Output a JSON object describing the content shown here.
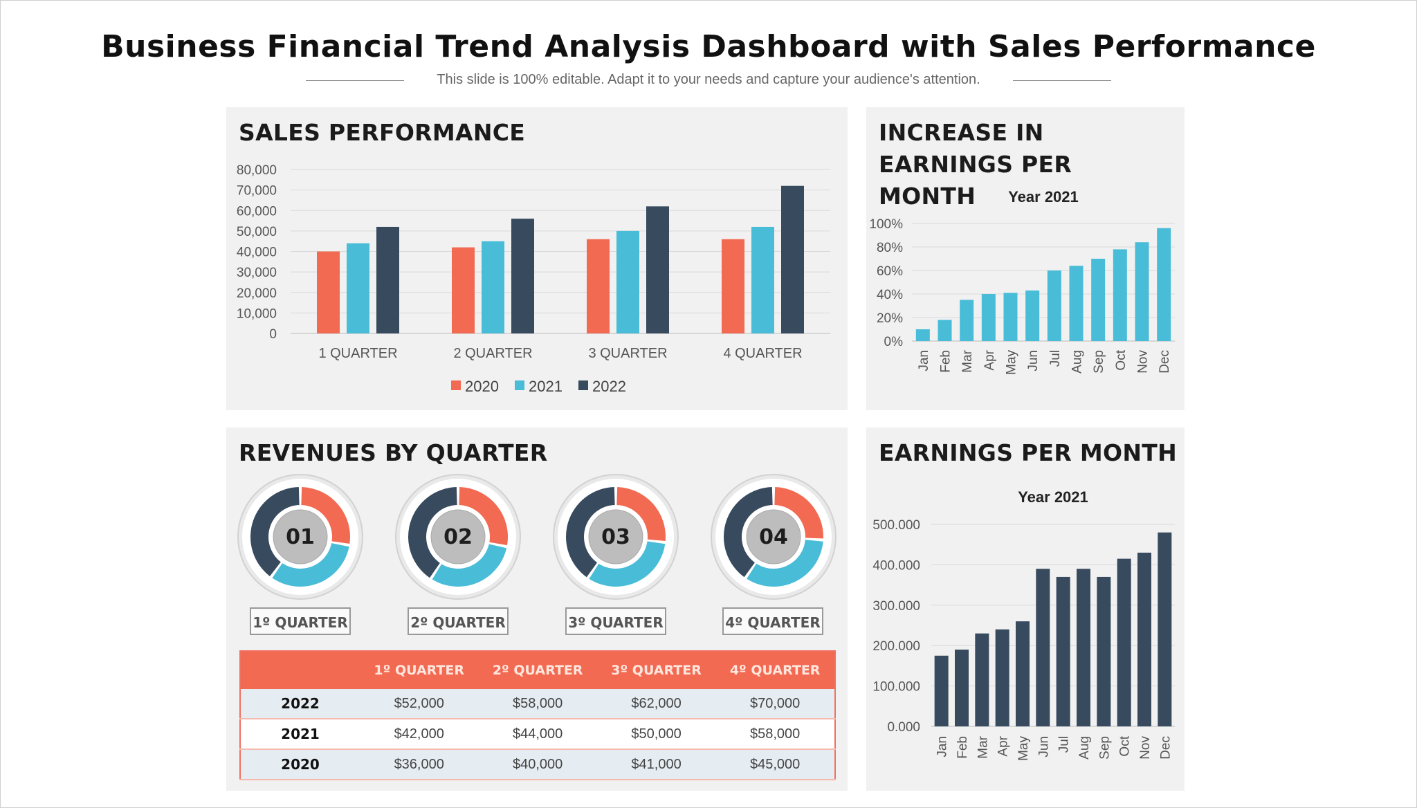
{
  "page": {
    "title": "Business Financial Trend Analysis Dashboard with Sales Performance",
    "subtitle": "This slide is 100% editable. Adapt it to your needs and capture your audience's attention."
  },
  "colors": {
    "c2020": "#f26a51",
    "c2021": "#49bcd8",
    "c2022": "#374a5e",
    "panel_bg": "#f1f1f1"
  },
  "chart_data": [
    {
      "id": "sales",
      "type": "bar",
      "title": "SALES PERFORMANCE",
      "categories": [
        "1 QUARTER",
        "2 QUARTER",
        "3 QUARTER",
        "4 QUARTER"
      ],
      "series": [
        {
          "name": "2020",
          "color": "#f26a51",
          "values": [
            40000,
            42000,
            46000,
            46000
          ]
        },
        {
          "name": "2021",
          "color": "#49bcd8",
          "values": [
            44000,
            45000,
            50000,
            52000
          ]
        },
        {
          "name": "2022",
          "color": "#374a5e",
          "values": [
            52000,
            56000,
            62000,
            72000
          ]
        }
      ],
      "ylim": [
        0,
        80000
      ],
      "yticks": [
        "0",
        "10,000",
        "20,000",
        "30,000",
        "40,000",
        "50,000",
        "60,000",
        "70,000",
        "80,000"
      ],
      "grid": true,
      "legend": "bottom"
    },
    {
      "id": "increase",
      "type": "bar",
      "title": "INCREASE IN EARNINGS PER MONTH",
      "subtitle": "Year 2021",
      "categories": [
        "Jan",
        "Feb",
        "Mar",
        "Apr",
        "May",
        "Jun",
        "Jul",
        "Aug",
        "Sep",
        "Oct",
        "Nov",
        "Dec"
      ],
      "values": [
        10,
        18,
        35,
        40,
        41,
        43,
        60,
        64,
        70,
        78,
        84,
        96
      ],
      "ylim": [
        0,
        100
      ],
      "yticks": [
        "0%",
        "20%",
        "40%",
        "60%",
        "80%",
        "100%"
      ],
      "grid": true,
      "color": "#49bcd8"
    },
    {
      "id": "earnings",
      "type": "bar",
      "title": "EARNINGS PER MONTH",
      "subtitle": "Year 2021",
      "categories": [
        "Jan",
        "Feb",
        "Mar",
        "Apr",
        "May",
        "Jun",
        "Jul",
        "Aug",
        "Sep",
        "Oct",
        "Nov",
        "Dec"
      ],
      "values": [
        175,
        190,
        230,
        240,
        260,
        390,
        370,
        390,
        370,
        415,
        430,
        480
      ],
      "ylim": [
        0,
        500
      ],
      "yticks": [
        "0.000",
        "100.000",
        "200.000",
        "300.000",
        "400.000",
        "500.000"
      ],
      "grid": true,
      "color": "#374a5e"
    },
    {
      "id": "revenues",
      "type": "pie",
      "title": "REVENUES BY QUARTER",
      "donuts": [
        {
          "label": "01",
          "quarter": "1º QUARTER",
          "values": [
            36000,
            42000,
            52000
          ]
        },
        {
          "label": "02",
          "quarter": "2º QUARTER",
          "values": [
            40000,
            44000,
            58000
          ]
        },
        {
          "label": "03",
          "quarter": "3º QUARTER",
          "values": [
            41000,
            50000,
            62000
          ]
        },
        {
          "label": "04",
          "quarter": "4º QUARTER",
          "values": [
            45000,
            58000,
            70000
          ]
        }
      ],
      "table": {
        "headers": [
          "",
          "1º QUARTER",
          "2º QUARTER",
          "3º QUARTER",
          "4º QUARTER"
        ],
        "rows": [
          {
            "year": "2022",
            "values": [
              "$52,000",
              "$58,000",
              "$62,000",
              "$70,000"
            ]
          },
          {
            "year": "2021",
            "values": [
              "$42,000",
              "$44,000",
              "$50,000",
              "$58,000"
            ]
          },
          {
            "year": "2020",
            "values": [
              "$36,000",
              "$40,000",
              "$41,000",
              "$45,000"
            ]
          }
        ]
      }
    }
  ]
}
